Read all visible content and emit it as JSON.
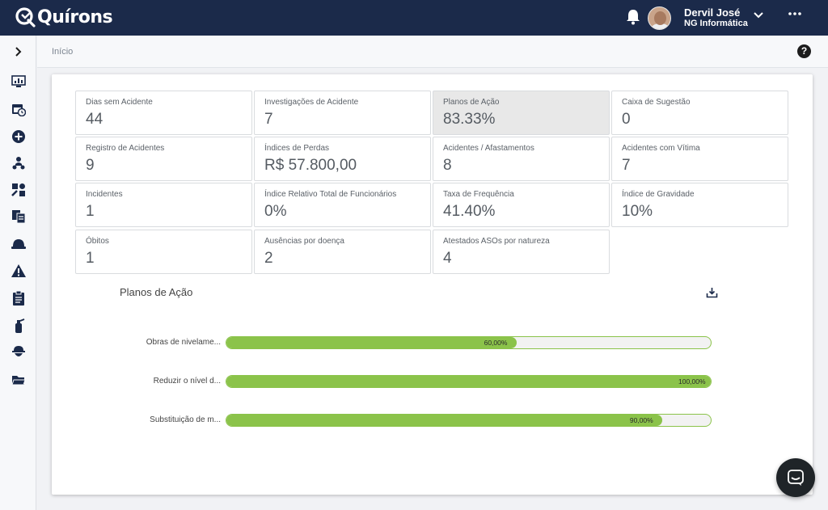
{
  "app": {
    "logo_text": "Quírons"
  },
  "header": {
    "user_name": "Dervil José",
    "user_org": "NG Informática",
    "icons": [
      "bell-icon",
      "avatar",
      "chevron-down-icon",
      "more-options-icon"
    ]
  },
  "breadcrumb": {
    "label": "Início"
  },
  "sidebar": {
    "items": [
      {
        "icon": "chevron-right-icon"
      },
      {
        "icon": "dashboard-monitor-icon"
      },
      {
        "icon": "calendar-clock-icon"
      },
      {
        "icon": "add-circle-icon"
      },
      {
        "icon": "people-network-icon"
      },
      {
        "icon": "settings-puzzle-icon"
      },
      {
        "icon": "documents-icon"
      },
      {
        "icon": "hard-hat-icon"
      },
      {
        "icon": "warning-triangle-icon"
      },
      {
        "icon": "clipboard-icon"
      },
      {
        "icon": "fire-extinguisher-icon"
      },
      {
        "icon": "worker-icon"
      },
      {
        "icon": "folder-open-icon"
      }
    ]
  },
  "kpis": [
    {
      "label": "Dias sem Acidente",
      "value": "44"
    },
    {
      "label": "Investigações de Acidente",
      "value": "7"
    },
    {
      "label": "Planos de Ação",
      "value": "83.33%",
      "selected": true
    },
    {
      "label": "Caixa de Sugestão",
      "value": "0"
    },
    {
      "label": "Registro de Acidentes",
      "value": "9"
    },
    {
      "label": "Índices de Perdas",
      "value": "R$ 57.800,00"
    },
    {
      "label": "Acidentes / Afastamentos",
      "value": "8"
    },
    {
      "label": "Acidentes com Vítima",
      "value": "7"
    },
    {
      "label": "Incidentes",
      "value": "1"
    },
    {
      "label": "Índice Relativo Total de Funcionários",
      "value": "0%"
    },
    {
      "label": "Taxa de Frequência",
      "value": "41.40%"
    },
    {
      "label": "Índice de Gravidade",
      "value": "10%"
    },
    {
      "label": "Óbitos",
      "value": "1"
    },
    {
      "label": "Ausências por doença",
      "value": "2"
    },
    {
      "label": "Atestados ASOs por natureza",
      "value": "4"
    }
  ],
  "chart": {
    "title": "Planos de Ação",
    "download_icon": "download-icon",
    "colors": {
      "fill": "#8bc34a",
      "track": "#f2f2f2"
    },
    "bars": [
      {
        "label": "Obras de nivelame...",
        "value": 60,
        "display": "60,00%"
      },
      {
        "label": "Reduzir o nível d...",
        "value": 100,
        "display": "100,00%"
      },
      {
        "label": "Substituição de m...",
        "value": 90,
        "display": "90,00%"
      }
    ]
  },
  "chat": {
    "icon": "chat-bubble-icon"
  }
}
